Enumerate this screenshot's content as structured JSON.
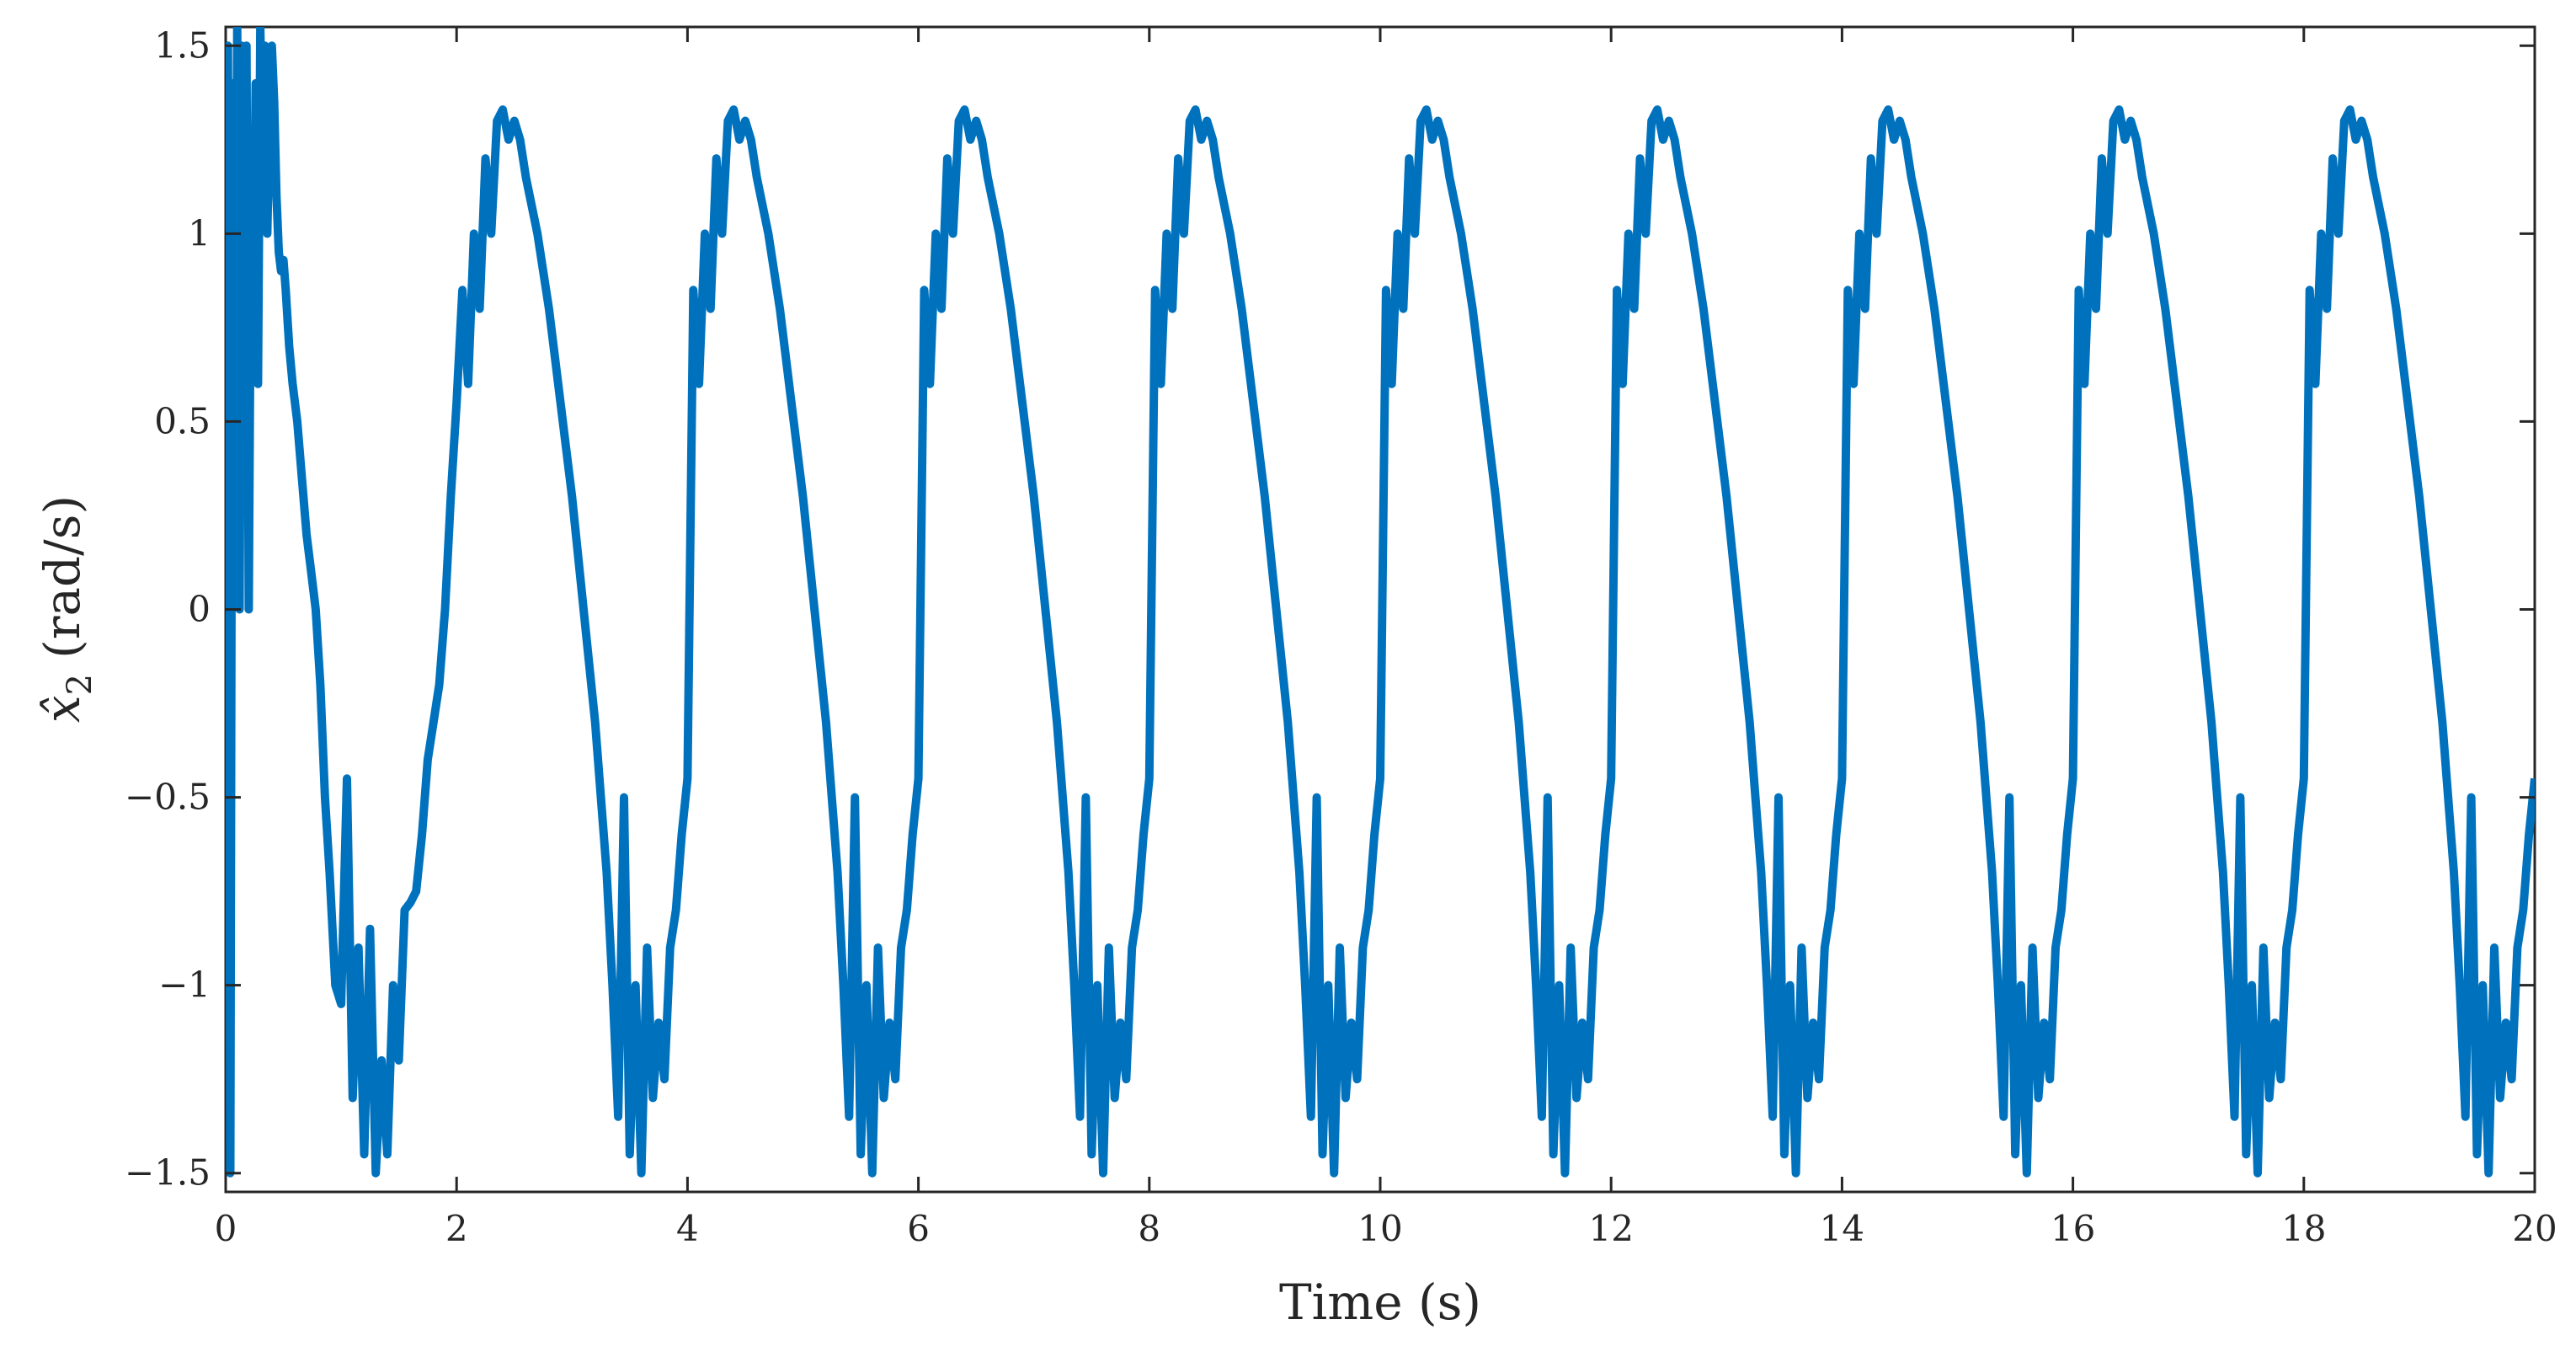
{
  "chart_data": {
    "type": "line",
    "xlabel": "Time (s)",
    "ylabel_symbol": "x̂",
    "ylabel_subscript": "2",
    "ylabel_units": "(rad/s)",
    "xlim": [
      0,
      20
    ],
    "ylim": [
      -1.55,
      1.55
    ],
    "x_ticks": [
      0,
      2,
      4,
      6,
      8,
      10,
      12,
      14,
      16,
      18,
      20
    ],
    "x_tick_labels": [
      "0",
      "2",
      "4",
      "6",
      "8",
      "10",
      "12",
      "14",
      "16",
      "18",
      "20"
    ],
    "y_ticks": [
      1.5,
      1,
      0.5,
      0,
      -0.5,
      -1,
      -1.5
    ],
    "y_tick_labels": [
      "1.5",
      "1",
      "0.5",
      "0",
      "−0.5",
      "−1",
      "−1.5"
    ],
    "grid": false,
    "legend": "none",
    "series": [
      {
        "color": "#0072BD",
        "x": [
          0,
          0.02,
          0.04,
          0.06,
          0.08,
          0.1,
          0.12,
          0.14,
          0.16,
          0.18,
          0.2,
          0.22,
          0.24,
          0.26,
          0.28,
          0.3,
          0.32,
          0.34,
          0.36,
          0.38,
          0.4,
          0.42,
          0.44,
          0.46,
          0.48,
          0.5,
          0.52,
          0.55,
          0.58,
          0.62,
          0.66,
          0.7,
          0.74,
          0.78,
          0.82,
          0.86,
          0.9,
          0.95,
          1.0,
          1.05,
          1.1,
          1.15,
          1.2,
          1.25,
          1.3,
          1.35,
          1.4,
          1.45,
          1.5,
          1.55,
          1.6,
          1.65,
          1.7,
          1.75,
          1.8,
          1.85,
          1.9,
          1.95,
          2.0,
          2.05,
          2.1,
          2.15,
          2.2,
          2.25,
          2.3,
          2.35,
          2.4,
          2.45,
          2.5,
          2.55,
          2.6,
          2.7,
          2.8,
          2.9,
          3.0,
          3.1,
          3.2,
          3.3,
          3.35,
          3.4,
          3.45,
          3.5,
          3.55,
          3.6,
          3.65,
          3.7,
          3.75,
          3.8,
          3.85,
          3.9,
          3.95,
          4.0
        ],
        "y": [
          0,
          1.5,
          -1.5,
          1.4,
          0.1,
          1.55,
          0.0,
          1.5,
          1.2,
          1.5,
          0.0,
          1.1,
          0.8,
          1.4,
          0.6,
          1.55,
          1.2,
          1.5,
          1.0,
          1.3,
          1.5,
          1.35,
          1.1,
          0.95,
          0.9,
          0.93,
          0.85,
          0.7,
          0.6,
          0.5,
          0.35,
          0.2,
          0.1,
          0.0,
          -0.2,
          -0.5,
          -0.7,
          -1.0,
          -1.05,
          -0.45,
          -1.3,
          -0.9,
          -1.45,
          -0.85,
          -1.5,
          -1.2,
          -1.45,
          -1.0,
          -1.2,
          -0.8,
          -0.78,
          -0.75,
          -0.6,
          -0.4,
          -0.3,
          -0.2,
          0.0,
          0.3,
          0.55,
          0.85,
          0.6,
          1.0,
          0.8,
          1.2,
          1.0,
          1.3,
          1.33,
          1.25,
          1.3,
          1.25,
          1.15,
          1.0,
          0.8,
          0.55,
          0.3,
          0.0,
          -0.3,
          -0.7,
          -1.0,
          -1.35,
          -0.5,
          -1.45,
          -1.0,
          -1.5,
          -0.9,
          -1.3,
          -1.1,
          -1.25,
          -0.9,
          -0.8,
          -0.6,
          -0.45
        ]
      }
    ]
  }
}
